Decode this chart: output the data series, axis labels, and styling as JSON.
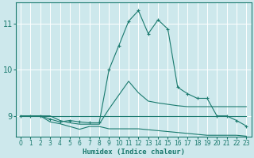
{
  "xlabel": "Humidex (Indice chaleur)",
  "bg_color": "#cde8ec",
  "grid_color": "#ffffff",
  "line_color": "#1a7a6e",
  "xlim": [
    -0.5,
    23.5
  ],
  "ylim": [
    8.55,
    11.45
  ],
  "yticks": [
    9,
    10,
    11
  ],
  "xticks": [
    0,
    1,
    2,
    3,
    4,
    5,
    6,
    7,
    8,
    9,
    10,
    11,
    12,
    13,
    14,
    15,
    16,
    17,
    18,
    19,
    20,
    21,
    22,
    23
  ],
  "line1_x": [
    0,
    1,
    2,
    3,
    4,
    5,
    6,
    7,
    8,
    9,
    10,
    11,
    12,
    13,
    14,
    15,
    16,
    17,
    18,
    19,
    20,
    21,
    22,
    23
  ],
  "line1_y": [
    9.0,
    9.0,
    9.0,
    9.0,
    9.0,
    9.0,
    9.0,
    9.0,
    9.0,
    9.0,
    9.0,
    9.0,
    9.0,
    9.0,
    9.0,
    9.0,
    9.0,
    9.0,
    9.0,
    9.0,
    9.0,
    9.0,
    9.0,
    9.0
  ],
  "line2_x": [
    0,
    1,
    2,
    3,
    4,
    5,
    6,
    7,
    8,
    9,
    10,
    11,
    12,
    13,
    14,
    15,
    16,
    17,
    18,
    19,
    20,
    21,
    22,
    23
  ],
  "line2_y": [
    9.0,
    9.0,
    9.0,
    8.87,
    8.83,
    8.77,
    8.71,
    8.77,
    8.77,
    8.72,
    8.72,
    8.72,
    8.72,
    8.7,
    8.68,
    8.66,
    8.64,
    8.62,
    8.6,
    8.58,
    8.58,
    8.58,
    8.58,
    8.56
  ],
  "line3_x": [
    0,
    1,
    2,
    3,
    4,
    5,
    6,
    7,
    8,
    9,
    10,
    11,
    12,
    13,
    14,
    15,
    16,
    17,
    18,
    19,
    20,
    21,
    22,
    23
  ],
  "line3_y": [
    9.0,
    9.0,
    9.0,
    9.0,
    8.9,
    8.85,
    8.82,
    8.82,
    8.82,
    9.15,
    9.45,
    9.75,
    9.5,
    9.32,
    9.28,
    9.25,
    9.22,
    9.2,
    9.2,
    9.2,
    9.2,
    9.2,
    9.2,
    9.2
  ],
  "line4_x": [
    0,
    1,
    2,
    3,
    4,
    5,
    6,
    7,
    8,
    9,
    10,
    11,
    12,
    13,
    14,
    15,
    16,
    17,
    18,
    19,
    20,
    21,
    22,
    23
  ],
  "line4_y": [
    9.0,
    9.0,
    9.0,
    8.93,
    8.87,
    8.9,
    8.87,
    8.85,
    8.85,
    10.0,
    10.52,
    11.05,
    11.28,
    10.78,
    11.08,
    10.88,
    9.62,
    9.48,
    9.38,
    9.38,
    9.0,
    9.0,
    8.9,
    8.78
  ]
}
